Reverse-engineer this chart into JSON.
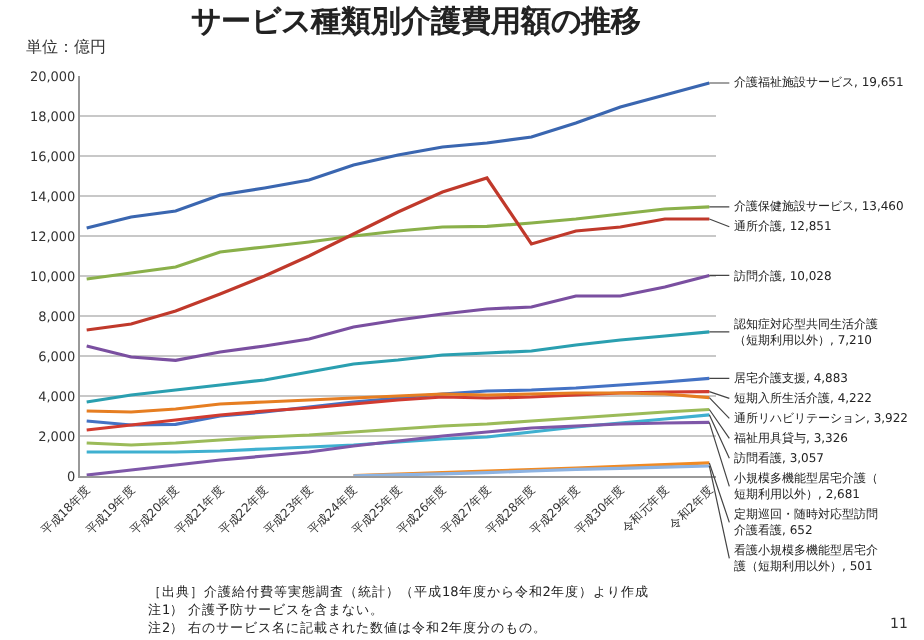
{
  "chart_data": {
    "type": "line",
    "title": "サービス種類別介護費用額の推移",
    "ylabel": "単位：億円",
    "categories": [
      "平成18年度",
      "平成19年度",
      "平成20年度",
      "平成21年度",
      "平成22年度",
      "平成23年度",
      "平成24年度",
      "平成25年度",
      "平成26年度",
      "平成27年度",
      "平成28年度",
      "平成29年度",
      "平成30年度",
      "令和元年度",
      "令和2年度"
    ],
    "ylim": [
      0,
      20000
    ],
    "yticks": [
      {
        "value": 0,
        "label": "0"
      },
      {
        "value": 2000,
        "label": "2,000"
      },
      {
        "value": 4000,
        "label": "4,000"
      },
      {
        "value": 6000,
        "label": "6,000"
      },
      {
        "value": 8000,
        "label": "8,000"
      },
      {
        "value": 10000,
        "label": "10,000"
      },
      {
        "value": 12000,
        "label": "12,000"
      },
      {
        "value": 14000,
        "label": "14,000"
      },
      {
        "value": 16000,
        "label": "16,000"
      },
      {
        "value": 18000,
        "label": "18,000"
      },
      {
        "value": 20000,
        "label": "20,000"
      }
    ],
    "grid": "y",
    "legend": false,
    "marker": "none",
    "line_style": "solid",
    "series": [
      {
        "name": "介護福祉施設サービス",
        "color": "#3a66b0",
        "values": [
          12400,
          12950,
          13250,
          14050,
          14400,
          14800,
          15550,
          16050,
          16450,
          16650,
          16950,
          17650,
          18450,
          19050,
          19651
        ],
        "value_labels": [
          null,
          null,
          null,
          null,
          null,
          null,
          null,
          null,
          null,
          null,
          null,
          null,
          null,
          null,
          ", 19,651"
        ]
      },
      {
        "name": "介護保健施設サービス",
        "color": "#8ab04a",
        "values": [
          9850,
          10150,
          10450,
          11200,
          11450,
          11700,
          12000,
          12250,
          12450,
          12480,
          12650,
          12850,
          13100,
          13350,
          13460
        ],
        "value_labels": [
          null,
          null,
          null,
          null,
          null,
          null,
          null,
          null,
          null,
          null,
          null,
          null,
          null,
          null,
          ", 13,460"
        ]
      },
      {
        "name": "通所介護",
        "color": "#c0392b",
        "values": [
          7300,
          7600,
          8250,
          9100,
          10000,
          11000,
          12100,
          13200,
          14200,
          14900,
          11600,
          12250,
          12450,
          12850,
          12851
        ],
        "value_labels": [
          null,
          null,
          null,
          null,
          null,
          null,
          null,
          null,
          null,
          null,
          null,
          null,
          null,
          null,
          ", 12,851"
        ]
      },
      {
        "name": "訪問介護",
        "color": "#7a4fa0",
        "values": [
          6500,
          5950,
          5780,
          6200,
          6500,
          6850,
          7450,
          7800,
          8100,
          8350,
          8450,
          9000,
          9000,
          9450,
          10028
        ],
        "value_labels": [
          null,
          null,
          null,
          null,
          null,
          null,
          null,
          null,
          null,
          null,
          null,
          null,
          null,
          null,
          ", 10,028"
        ]
      },
      {
        "name": "認知症対応型共同生活介護（短期利用以外）",
        "color": "#2a9fb0",
        "values": [
          3700,
          4050,
          4300,
          4550,
          4800,
          5200,
          5600,
          5800,
          6050,
          6150,
          6250,
          6550,
          6800,
          7000,
          7210
        ],
        "value_labels": [
          null,
          null,
          null,
          null,
          null,
          null,
          null,
          null,
          null,
          null,
          null,
          null,
          null,
          null,
          ", 7,210"
        ]
      },
      {
        "name": "居宅介護支援",
        "color": "#4472c4",
        "values": [
          2750,
          2550,
          2580,
          3000,
          3200,
          3450,
          3700,
          3900,
          4100,
          4250,
          4300,
          4400,
          4550,
          4700,
          4883
        ],
        "value_labels": [
          null,
          null,
          null,
          null,
          null,
          null,
          null,
          null,
          null,
          null,
          null,
          null,
          null,
          null,
          ", 4,883"
        ]
      },
      {
        "name": "短期入所生活介護",
        "color": "#d13b30",
        "values": [
          2300,
          2550,
          2800,
          3050,
          3250,
          3400,
          3600,
          3800,
          3950,
          3900,
          3950,
          4050,
          4150,
          4200,
          4222
        ],
        "value_labels": [
          null,
          null,
          null,
          null,
          null,
          null,
          null,
          null,
          null,
          null,
          null,
          null,
          null,
          null,
          ", 4,222"
        ]
      },
      {
        "name": "通所リハビリテーション",
        "color": "#e67e22",
        "values": [
          3250,
          3200,
          3350,
          3600,
          3700,
          3800,
          3900,
          4000,
          4100,
          4050,
          4100,
          4150,
          4150,
          4100,
          3922
        ],
        "value_labels": [
          null,
          null,
          null,
          null,
          null,
          null,
          null,
          null,
          null,
          null,
          null,
          null,
          null,
          null,
          ", 3,922"
        ]
      },
      {
        "name": "福祉用具貸与",
        "color": "#9bbb59",
        "values": [
          1650,
          1550,
          1650,
          1800,
          1950,
          2050,
          2200,
          2350,
          2500,
          2600,
          2750,
          2900,
          3050,
          3200,
          3326
        ],
        "value_labels": [
          null,
          null,
          null,
          null,
          null,
          null,
          null,
          null,
          null,
          null,
          null,
          null,
          null,
          null,
          ", 3,326"
        ]
      },
      {
        "name": "訪問看護",
        "color": "#3fb0d0",
        "values": [
          1200,
          1200,
          1200,
          1250,
          1350,
          1450,
          1550,
          1700,
          1850,
          1950,
          2200,
          2450,
          2650,
          2850,
          3057
        ],
        "value_labels": [
          null,
          null,
          null,
          null,
          null,
          null,
          null,
          null,
          null,
          null,
          null,
          null,
          null,
          null,
          ", 3,057"
        ]
      },
      {
        "name": "小規模多機能型居宅介護（短期利用以外）",
        "color": "#7e57a8",
        "values": [
          50,
          300,
          550,
          800,
          1000,
          1200,
          1500,
          1750,
          2000,
          2200,
          2400,
          2500,
          2600,
          2650,
          2681
        ],
        "value_labels": [
          null,
          null,
          null,
          null,
          null,
          null,
          null,
          null,
          null,
          null,
          null,
          null,
          null,
          null,
          ", 2,681"
        ]
      },
      {
        "name": "定期巡回・随時対応型訪問介護看護",
        "color": "#f08a24",
        "values": [
          null,
          null,
          null,
          null,
          null,
          null,
          20,
          100,
          170,
          250,
          320,
          400,
          480,
          570,
          652
        ],
        "value_labels": [
          null,
          null,
          null,
          null,
          null,
          null,
          null,
          null,
          null,
          null,
          null,
          null,
          null,
          null,
          ", 652"
        ]
      },
      {
        "name": "看護小規模多機能型居宅介護（短期利用以外）",
        "color": "#8db3e2",
        "values": [
          null,
          null,
          null,
          null,
          null,
          null,
          10,
          60,
          110,
          170,
          250,
          330,
          380,
          440,
          501
        ],
        "value_labels": [
          null,
          null,
          null,
          null,
          null,
          null,
          null,
          null,
          null,
          null,
          null,
          null,
          null,
          null,
          ", 501"
        ]
      }
    ],
    "annotations": [
      "［出典］介護給付費等実態調査（統計）（平成18年度から令和2年度）より作成",
      "注1） 介護予防サービスを含まない。",
      "注2） 右のサービス名に記載された数値は令和2年度分のもの。",
      "11"
    ]
  }
}
